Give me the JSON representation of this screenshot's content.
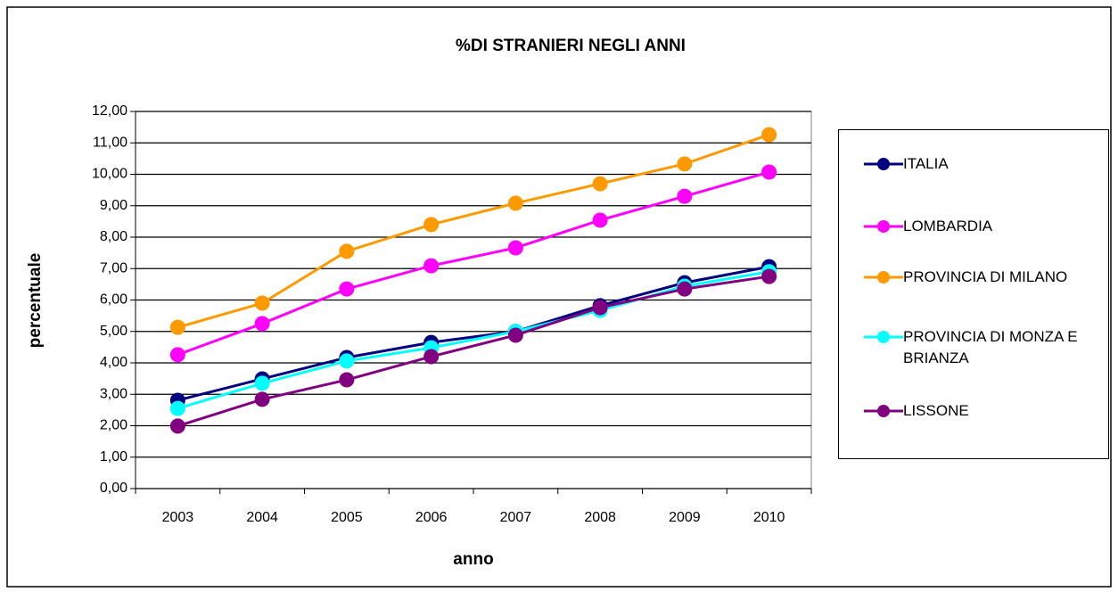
{
  "chart_data": {
    "type": "line",
    "title": "%DI STRANIERI NEGLI ANNI",
    "x_label": "anno",
    "y_label": "percentuale",
    "categories": [
      "2003",
      "2004",
      "2005",
      "2006",
      "2007",
      "2008",
      "2009",
      "2010"
    ],
    "series": [
      {
        "name": "ITALIA",
        "color": "#000080",
        "values": [
          2.81,
          3.49,
          4.17,
          4.65,
          5.0,
          5.82,
          6.55,
          7.06
        ]
      },
      {
        "name": "LOMBARDIA",
        "color": "#ff00ff",
        "values": [
          4.26,
          5.25,
          6.35,
          7.09,
          7.66,
          8.54,
          9.3,
          10.07
        ]
      },
      {
        "name": "PROVINCIA DI MILANO",
        "color": "#ff9900",
        "values": [
          5.13,
          5.9,
          7.55,
          8.4,
          9.08,
          9.7,
          10.33,
          11.26
        ]
      },
      {
        "name": "PROVINCIA DI MONZA E BRIANZA",
        "color": "#00ffff",
        "values": [
          2.55,
          3.35,
          4.06,
          4.48,
          5.0,
          5.67,
          6.44,
          6.9
        ]
      },
      {
        "name": "LISSONE",
        "color": "#800080",
        "values": [
          1.99,
          2.84,
          3.46,
          4.2,
          4.88,
          5.76,
          6.35,
          6.75
        ]
      }
    ],
    "ylim": [
      0,
      12
    ],
    "yticks": [
      {
        "value": 0,
        "label": "0,00"
      },
      {
        "value": 1,
        "label": "1,00"
      },
      {
        "value": 2,
        "label": "2,00"
      },
      {
        "value": 3,
        "label": "3,00"
      },
      {
        "value": 4,
        "label": "4,00"
      },
      {
        "value": 5,
        "label": "5,00"
      },
      {
        "value": 6,
        "label": "6,00"
      },
      {
        "value": 7,
        "label": "7,00"
      },
      {
        "value": 8,
        "label": "8,00"
      },
      {
        "value": 9,
        "label": "9,00"
      },
      {
        "value": 10,
        "label": "10,00"
      },
      {
        "value": 11,
        "label": "11,00"
      },
      {
        "value": 12,
        "label": "12,00"
      }
    ],
    "grid": true,
    "legend": "right"
  }
}
